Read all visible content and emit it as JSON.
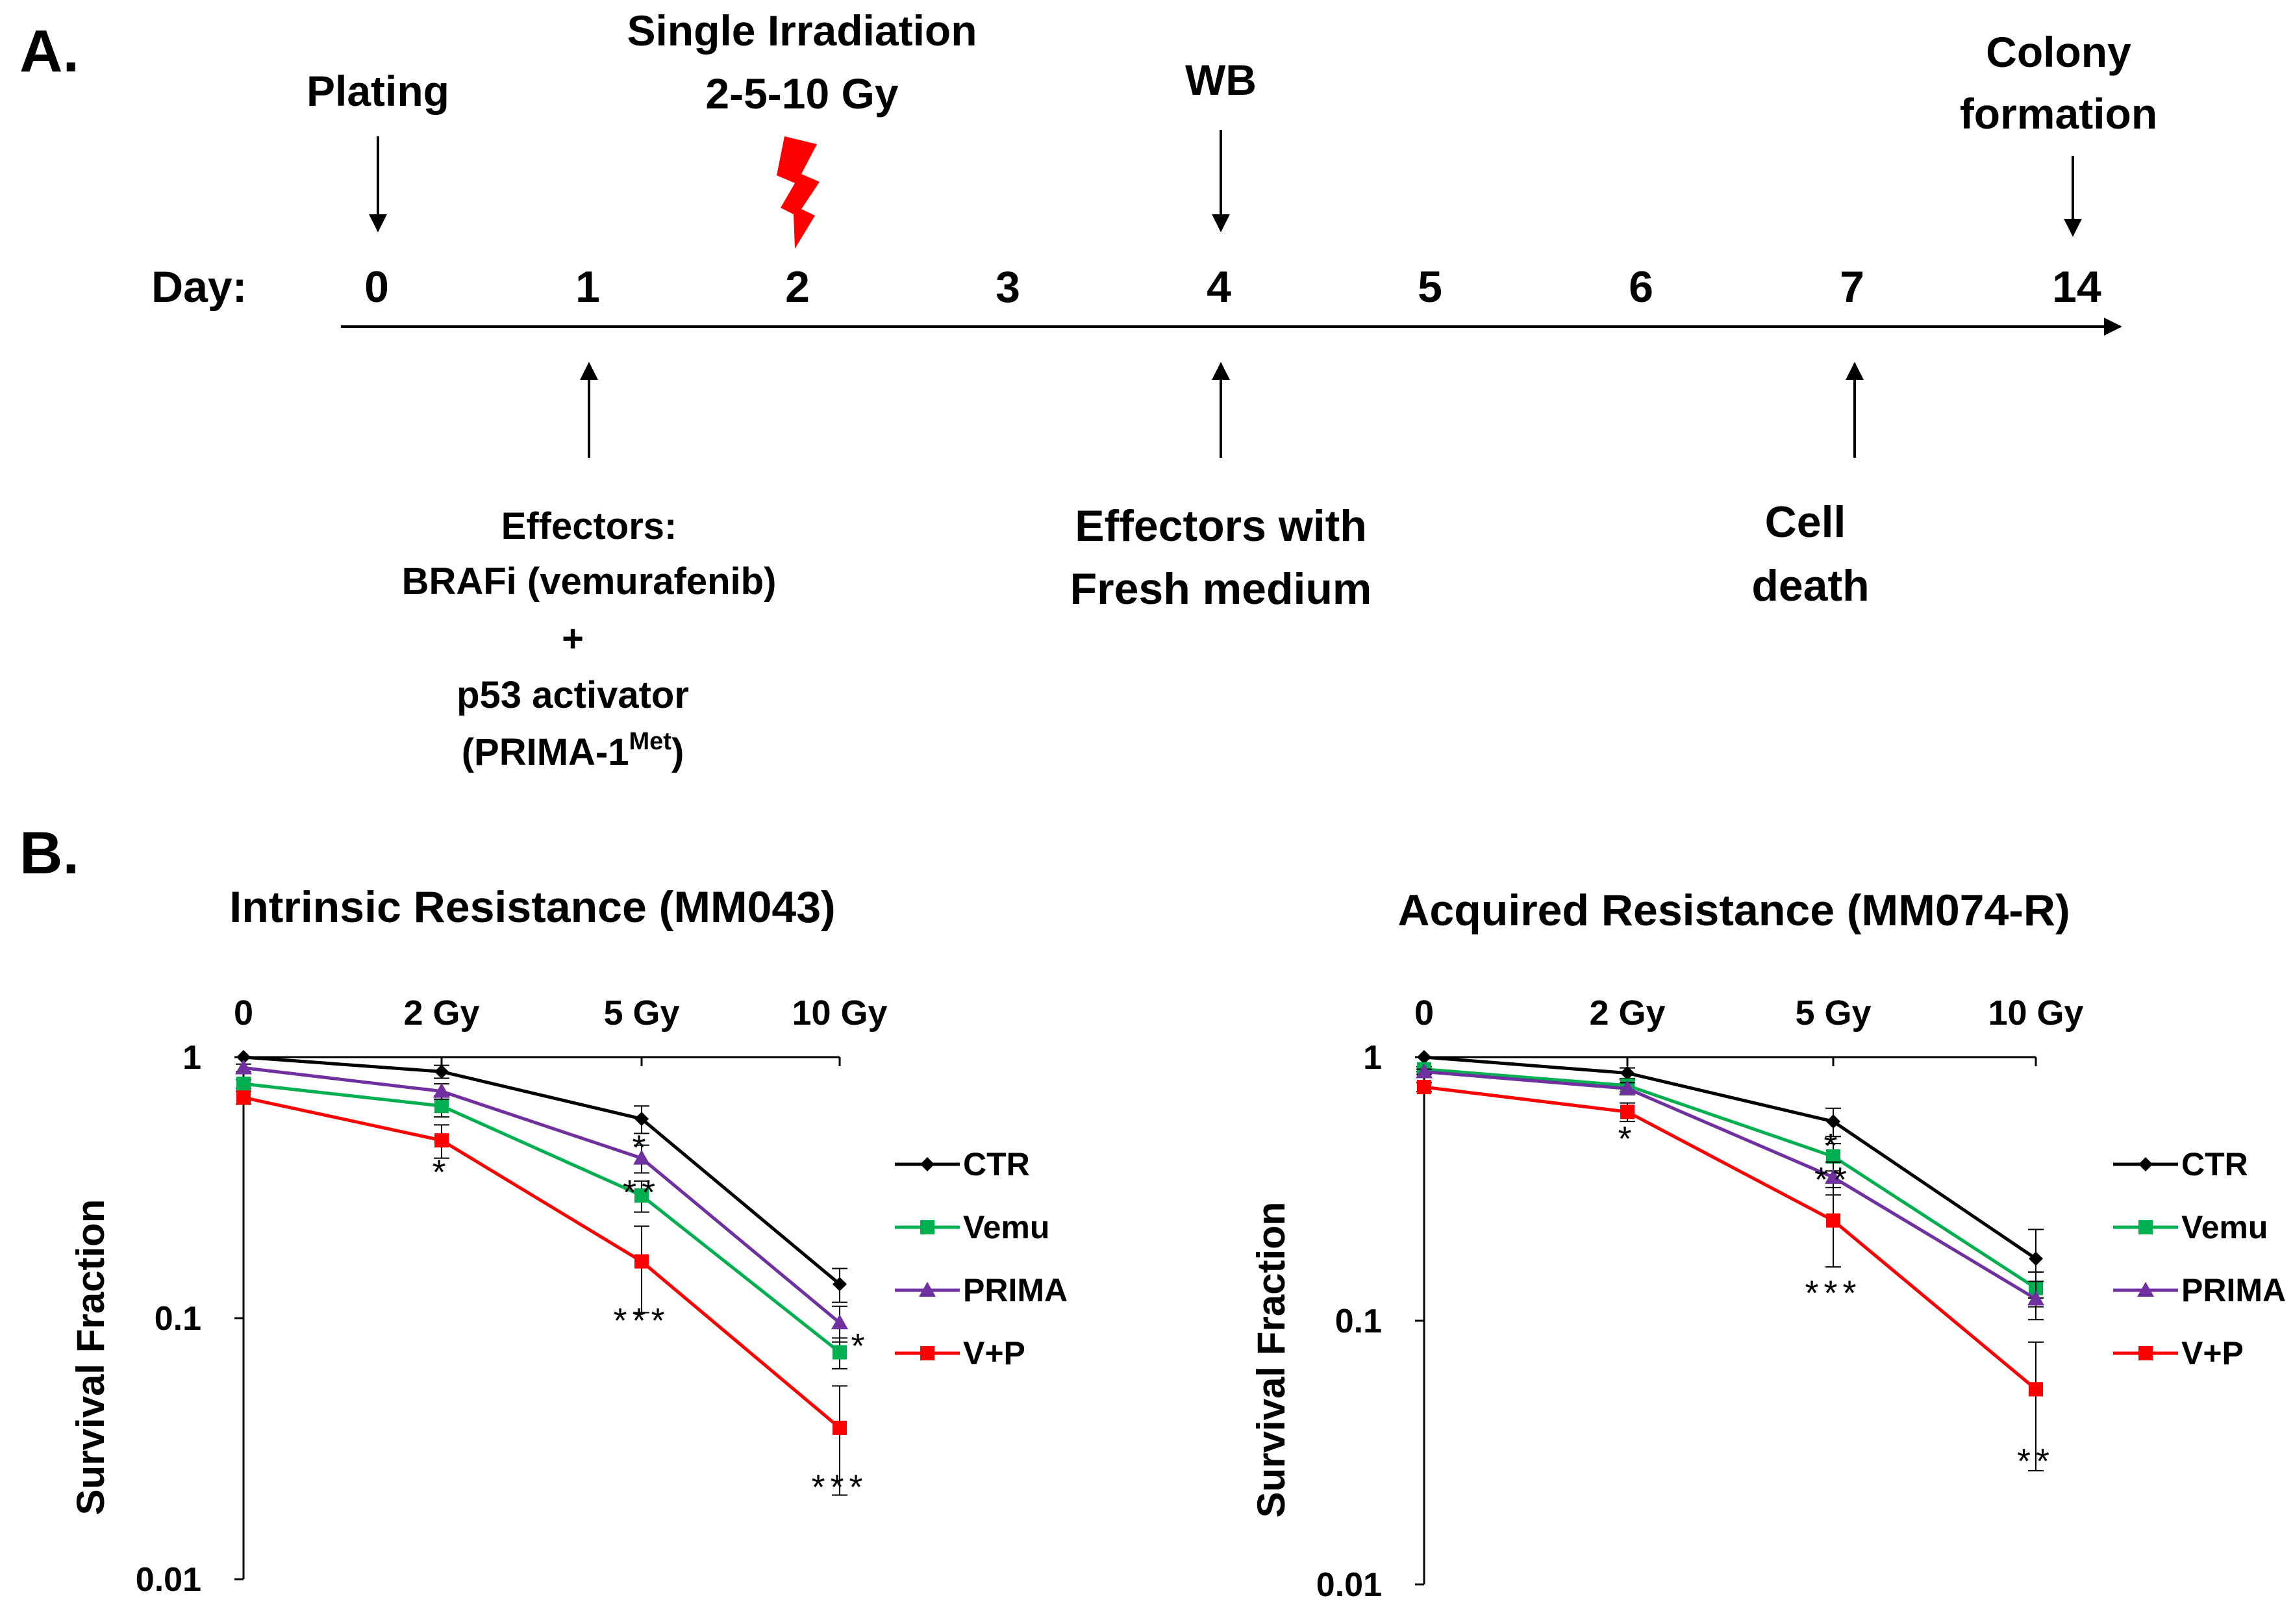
{
  "panel_a": {
    "label": "A.",
    "day_label": "Day:",
    "days": [
      "0",
      "1",
      "2",
      "3",
      "4",
      "5",
      "6",
      "7",
      "14"
    ],
    "top_events": [
      {
        "day": "0",
        "lines": [
          "Plating"
        ]
      },
      {
        "day": "2",
        "lines": [
          "Single Irradiation",
          "2-5-10 Gy"
        ]
      },
      {
        "day": "4",
        "lines": [
          "WB"
        ]
      },
      {
        "day": "14",
        "lines": [
          "Colony",
          "formation"
        ]
      }
    ],
    "bottom_events": [
      {
        "day": "1",
        "lines": [
          "Effectors:",
          "BRAFi (vemurafenib)",
          "+",
          "p53 activator"
        ],
        "last_line": {
          "prefix": "(PRIMA-1",
          "superscript": "Met",
          "suffix": ")"
        }
      },
      {
        "day": "4",
        "lines": [
          "Effectors with",
          "Fresh medium"
        ]
      },
      {
        "day": "7",
        "lines": [
          "Cell",
          "death"
        ]
      }
    ],
    "bolt_color": "#ff0000"
  },
  "panel_b": {
    "label": "B.",
    "ylabel": "Survival Fraction",
    "y_ticks": [
      "1",
      "0.1",
      "0.01"
    ],
    "legend": [
      "CTR",
      "Vemu",
      "PRIMA",
      "V+P"
    ]
  },
  "chart_data": [
    {
      "type": "line",
      "title": "Intrinsic Resistance (MM043)",
      "x": [
        0,
        2,
        5,
        10
      ],
      "x_tick_labels": [
        "0",
        "2 Gy",
        "5 Gy",
        "10 Gy"
      ],
      "xlabel": "",
      "ylabel": "Survival Fraction",
      "yscale": "log",
      "ylim": [
        0.01,
        1
      ],
      "grid": false,
      "legend_position": "right",
      "series": [
        {
          "name": "CTR",
          "color": "#000000",
          "marker": "diamond",
          "values": [
            1.0,
            0.88,
            0.58,
            0.135
          ],
          "errors": [
            0,
            0.05,
            0.07,
            0.02
          ]
        },
        {
          "name": "Vemu",
          "color": "#00b050",
          "marker": "square",
          "values": [
            0.79,
            0.65,
            0.295,
            0.074
          ],
          "errors": [
            0.03,
            0.06,
            0.04,
            0.01
          ]
        },
        {
          "name": "PRIMA",
          "color": "#7030a0",
          "marker": "triangle",
          "values": [
            0.91,
            0.74,
            0.41,
            0.096
          ],
          "errors": [
            0.03,
            0.05,
            0.05,
            0.015
          ]
        },
        {
          "name": "V+P",
          "color": "#ff0000",
          "marker": "square",
          "values": [
            0.7,
            0.48,
            0.165,
            0.038
          ],
          "errors": [
            0.04,
            0.07,
            0.06,
            0.017
          ]
        }
      ],
      "annotations": [
        {
          "text": "*",
          "x": 2,
          "y": 0.37
        },
        {
          "text": "*",
          "x": 5,
          "y": 0.46
        },
        {
          "text": "**",
          "x": 5,
          "y": 0.31
        },
        {
          "text": "***",
          "x": 5,
          "y": 0.1
        },
        {
          "text": "*",
          "x": 10,
          "y": 0.08
        },
        {
          "text": "***",
          "x": 10,
          "y": 0.023
        }
      ]
    },
    {
      "type": "line",
      "title": "Acquired  Resistance (MM074-R)",
      "x": [
        0,
        2,
        5,
        10
      ],
      "x_tick_labels": [
        "0",
        "2 Gy",
        "5 Gy",
        "10 Gy"
      ],
      "xlabel": "",
      "ylabel": "Survival Fraction",
      "yscale": "log",
      "ylim": [
        0.01,
        1
      ],
      "grid": false,
      "legend_position": "right",
      "series": [
        {
          "name": "CTR",
          "color": "#000000",
          "marker": "diamond",
          "values": [
            1.0,
            0.87,
            0.57,
            0.172
          ],
          "errors": [
            0,
            0.04,
            0.07,
            0.05
          ]
        },
        {
          "name": "Vemu",
          "color": "#00b050",
          "marker": "square",
          "values": [
            0.9,
            0.78,
            0.42,
            0.133
          ],
          "errors": [
            0.02,
            0.04,
            0.05,
            0.02
          ]
        },
        {
          "name": "PRIMA",
          "color": "#7030a0",
          "marker": "triangle",
          "values": [
            0.88,
            0.76,
            0.35,
            0.121
          ],
          "errors": [
            0.02,
            0.04,
            0.05,
            0.02
          ]
        },
        {
          "name": "V+P",
          "color": "#ff0000",
          "marker": "square",
          "values": [
            0.77,
            0.62,
            0.24,
            0.055
          ],
          "errors": [
            0.03,
            0.05,
            0.08,
            0.028
          ]
        }
      ],
      "annotations": [
        {
          "text": "*",
          "x": 2,
          "y": 0.5
        },
        {
          "text": "*",
          "x": 5,
          "y": 0.47
        },
        {
          "text": "**",
          "x": 5,
          "y": 0.35
        },
        {
          "text": "***",
          "x": 5,
          "y": 0.13
        },
        {
          "text": "**",
          "x": 10,
          "y": 0.03
        }
      ]
    }
  ]
}
